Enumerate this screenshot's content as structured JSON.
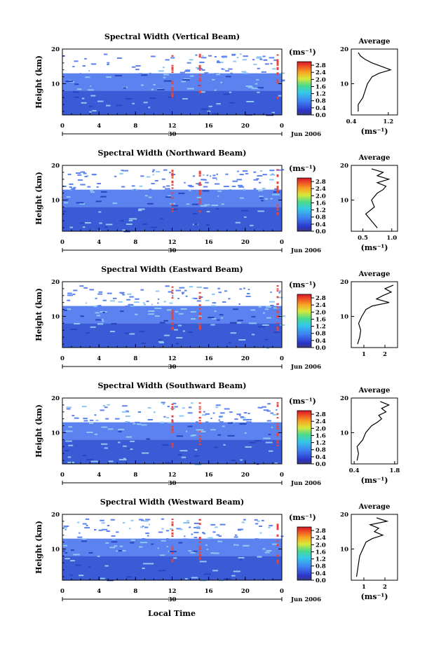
{
  "x_axis_label": "Local Time",
  "unit_label": "(ms⁻¹)",
  "average_title": "Average",
  "date_label": "Jun 2006",
  "day_marker": "30",
  "time_ticks": [
    "0",
    "4",
    "8",
    "12",
    "16",
    "20",
    "0"
  ],
  "height_ticks": [
    "20",
    "10"
  ],
  "height_label": "Height (km)",
  "colorbar_ticks": [
    "2.8",
    "2.4",
    "2.0",
    "1.6",
    "1.2",
    "0.8",
    "0.4",
    "0.0"
  ],
  "colors": {
    "background_low": "#3b5bd6",
    "background_mid": "#5b82ee",
    "sparse": "#8fc6f2",
    "turbulent": "#e8443a",
    "line": "#000000"
  },
  "chart_data": [
    {
      "type": "heatmap",
      "title": "Spectral Width (Vertical Beam)",
      "xlabel": "",
      "ylabel": "Height (km)",
      "xlim": [
        0,
        24
      ],
      "ylim": [
        1,
        20
      ],
      "x_ticks": [
        0,
        4,
        8,
        12,
        16,
        20,
        24
      ],
      "y_ticks": [
        10,
        20
      ],
      "colorbar": {
        "label": "(ms⁻¹)",
        "range": [
          0,
          3.0
        ],
        "ticks": [
          0.0,
          0.4,
          0.8,
          1.2,
          1.6,
          2.0,
          2.4,
          2.8
        ]
      },
      "average_profile": {
        "title": "Average",
        "xlabel": "(ms⁻¹)",
        "x_ticks": [
          "0.4",
          "1.2"
        ],
        "xlim": [
          0.4,
          1.4
        ],
        "heights": [
          2,
          4,
          6,
          8,
          10,
          12,
          13,
          14,
          15,
          16,
          17,
          18,
          19
        ],
        "values": [
          0.55,
          0.55,
          0.65,
          0.7,
          0.75,
          0.85,
          1.0,
          1.25,
          1.05,
          0.85,
          0.7,
          0.6,
          0.55
        ]
      }
    },
    {
      "type": "heatmap",
      "title": "Spectral Width (Northward Beam)",
      "xlabel": "",
      "ylabel": "Height (km)",
      "xlim": [
        0,
        24
      ],
      "ylim": [
        1,
        20
      ],
      "x_ticks": [
        0,
        4,
        8,
        12,
        16,
        20,
        24
      ],
      "y_ticks": [
        10,
        20
      ],
      "colorbar": {
        "label": "(ms⁻¹)",
        "range": [
          0,
          3.0
        ],
        "ticks": [
          0.0,
          0.4,
          0.8,
          1.2,
          1.6,
          2.0,
          2.4,
          2.8
        ]
      },
      "average_profile": {
        "title": "Average",
        "xlabel": "(ms⁻¹)",
        "x_ticks": [
          "0.5",
          "1.0"
        ],
        "xlim": [
          0.3,
          1.1
        ],
        "heights": [
          2,
          4,
          6,
          8,
          10,
          12,
          13,
          14,
          15,
          16,
          17,
          18,
          19
        ],
        "values": [
          0.75,
          0.65,
          0.55,
          0.7,
          0.65,
          0.75,
          0.85,
          0.9,
          0.75,
          0.95,
          0.75,
          0.85,
          0.65
        ]
      }
    },
    {
      "type": "heatmap",
      "title": "Spectral Width (Eastward Beam)",
      "xlabel": "",
      "ylabel": "Height (km)",
      "xlim": [
        0,
        24
      ],
      "ylim": [
        1,
        20
      ],
      "x_ticks": [
        0,
        4,
        8,
        12,
        16,
        20,
        24
      ],
      "y_ticks": [
        10,
        20
      ],
      "colorbar": {
        "label": "(ms⁻¹)",
        "range": [
          0,
          3.0
        ],
        "ticks": [
          0.0,
          0.4,
          0.8,
          1.2,
          1.6,
          2.0,
          2.4,
          2.8
        ]
      },
      "average_profile": {
        "title": "Average",
        "xlabel": "",
        "x_ticks": [
          "1",
          "2"
        ],
        "xlim": [
          0.4,
          2.6
        ],
        "heights": [
          2,
          4,
          6,
          8,
          10,
          12,
          13,
          14,
          15,
          16,
          17,
          18,
          19
        ],
        "values": [
          0.7,
          0.8,
          0.85,
          0.75,
          0.9,
          1.1,
          1.4,
          2.2,
          1.6,
          1.9,
          2.3,
          2.0,
          2.4
        ]
      }
    },
    {
      "type": "heatmap",
      "title": "Spectral Width (Southward Beam)",
      "xlabel": "",
      "ylabel": "Height (km)",
      "xlim": [
        0,
        24
      ],
      "ylim": [
        1,
        20
      ],
      "x_ticks": [
        0,
        4,
        8,
        12,
        16,
        20,
        24
      ],
      "y_ticks": [
        10,
        20
      ],
      "colorbar": {
        "label": "(ms⁻¹)",
        "range": [
          0,
          3.0
        ],
        "ticks": [
          0.0,
          0.4,
          0.8,
          1.2,
          1.6,
          2.0,
          2.4,
          2.8
        ]
      },
      "average_profile": {
        "title": "Average",
        "xlabel": "(ms⁻¹)",
        "x_ticks": [
          "0.4",
          "1.8"
        ],
        "xlim": [
          0.3,
          1.9
        ],
        "heights": [
          2,
          4,
          6,
          8,
          10,
          12,
          13,
          14,
          15,
          16,
          17,
          18,
          19
        ],
        "values": [
          0.5,
          0.55,
          0.5,
          0.7,
          0.8,
          1.0,
          1.2,
          1.35,
          1.25,
          1.5,
          1.35,
          1.6,
          1.3
        ]
      }
    },
    {
      "type": "heatmap",
      "title": "Spectral Width (Westward Beam)",
      "xlabel": "Local Time",
      "ylabel": "Height (km)",
      "xlim": [
        0,
        24
      ],
      "ylim": [
        1,
        20
      ],
      "x_ticks": [
        0,
        4,
        8,
        12,
        16,
        20,
        24
      ],
      "y_ticks": [
        10,
        20
      ],
      "colorbar": {
        "label": "(ms⁻¹)",
        "range": [
          0,
          3.0
        ],
        "ticks": [
          0.0,
          0.4,
          0.8,
          1.2,
          1.6,
          2.0,
          2.4,
          2.8
        ]
      },
      "average_profile": {
        "title": "Average",
        "xlabel": "(ms⁻¹)",
        "x_ticks": [
          "1",
          "2"
        ],
        "xlim": [
          0.4,
          2.6
        ],
        "heights": [
          2,
          4,
          6,
          8,
          10,
          12,
          13,
          14,
          15,
          16,
          17,
          18,
          19
        ],
        "values": [
          0.65,
          0.7,
          0.75,
          0.8,
          0.95,
          1.1,
          1.4,
          1.9,
          1.5,
          1.7,
          1.3,
          2.1,
          1.6
        ]
      }
    }
  ]
}
